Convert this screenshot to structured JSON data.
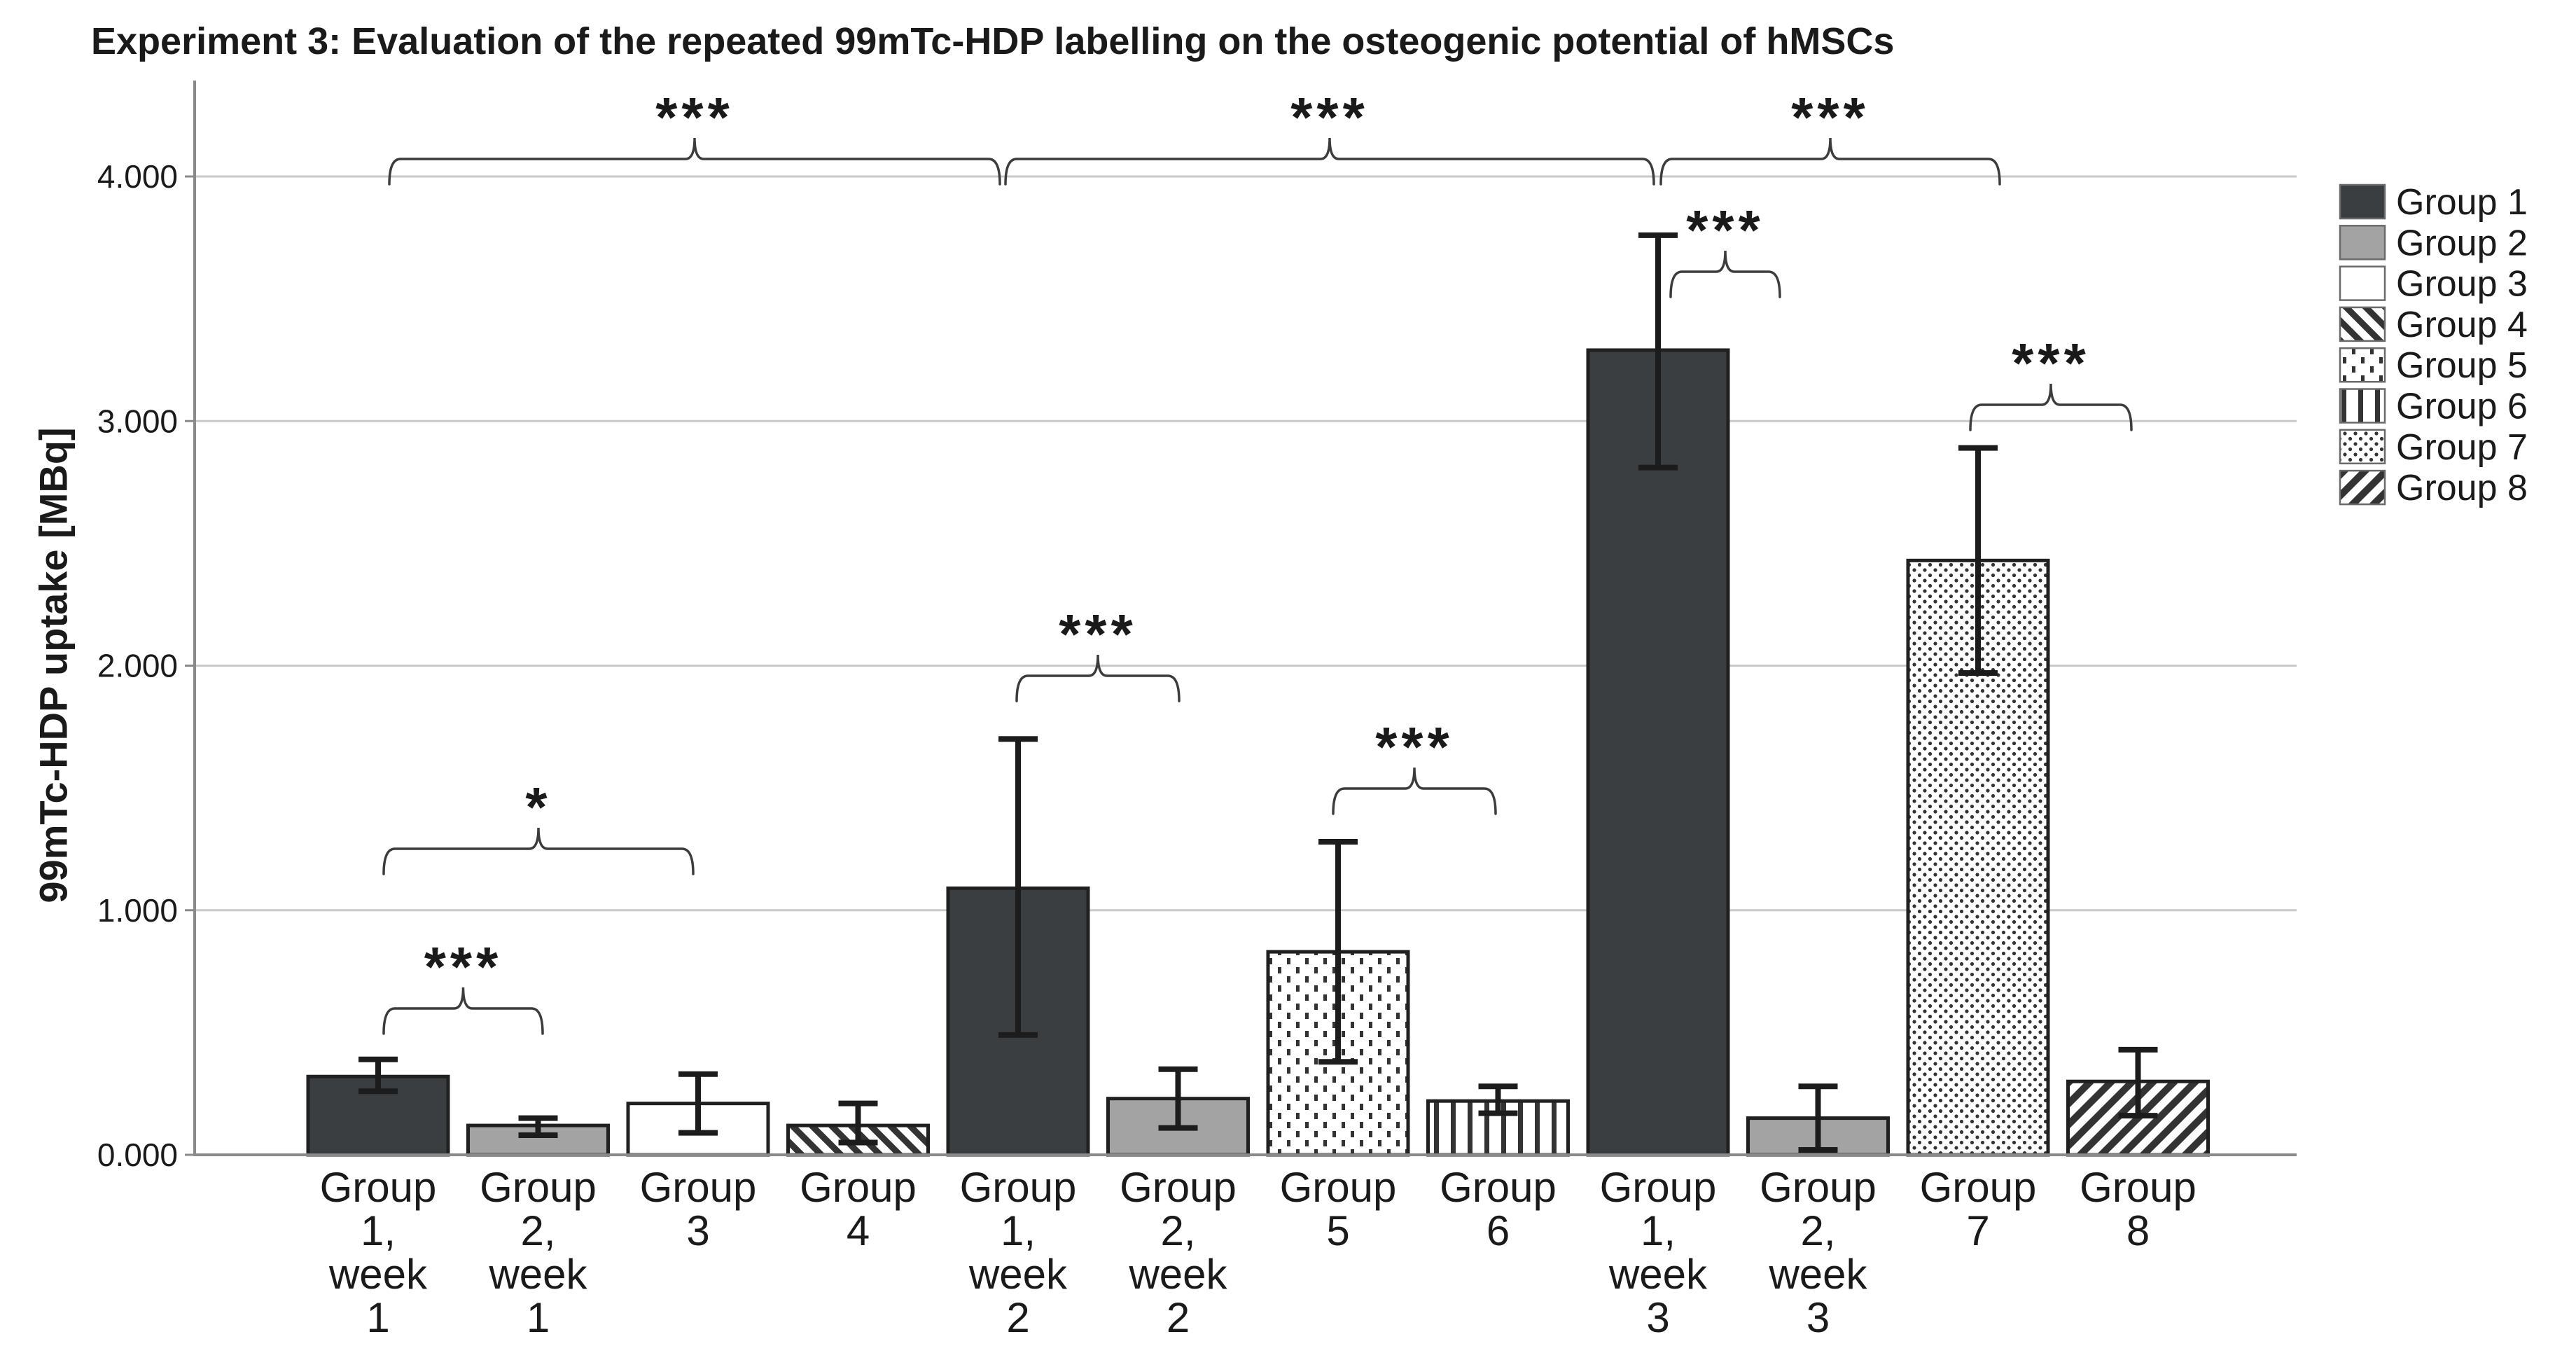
{
  "title": "Experiment 3: Evaluation of the repeated 99mTc-HDP labelling on the osteogenic potential of hMSCs",
  "chart_data": {
    "type": "bar",
    "title": "Experiment 3: Evaluation of the repeated 99mTc-HDP labelling on the osteogenic potential of hMSCs",
    "xlabel": "",
    "ylabel": "99mTc-HDP uptake [MBq]",
    "unit": "MBq",
    "ylim": [
      0,
      4.39
    ],
    "ytick_labels": [
      "0.000",
      "1.000",
      "2.000",
      "3.000",
      "4.000"
    ],
    "ytick_values": [
      0,
      1,
      2,
      3,
      4
    ],
    "grid": true,
    "legend_position": "right",
    "bars": [
      {
        "category": "Group 1, week 1",
        "label_lines": [
          "Group",
          "1,",
          "week",
          "1"
        ],
        "group": "Group 1",
        "pattern": "solid-dark",
        "value": 0.32,
        "err_low": 0.26,
        "err_high": 0.39
      },
      {
        "category": "Group 2, week 1",
        "label_lines": [
          "Group",
          "2,",
          "week",
          "1"
        ],
        "group": "Group 2",
        "pattern": "solid-gray",
        "value": 0.12,
        "err_low": 0.08,
        "err_high": 0.15
      },
      {
        "category": "Group 3",
        "label_lines": [
          "Group",
          "3"
        ],
        "group": "Group 3",
        "pattern": "solid-white",
        "value": 0.21,
        "err_low": 0.09,
        "err_high": 0.33
      },
      {
        "category": "Group 4",
        "label_lines": [
          "Group",
          "4"
        ],
        "group": "Group 4",
        "pattern": "diag-back",
        "value": 0.12,
        "err_low": 0.05,
        "err_high": 0.21
      },
      {
        "category": "Group 1, week 2",
        "label_lines": [
          "Group",
          "1,",
          "week",
          "2"
        ],
        "group": "Group 1",
        "pattern": "solid-dark",
        "value": 1.09,
        "err_low": 0.49,
        "err_high": 1.7
      },
      {
        "category": "Group 2, week 2",
        "label_lines": [
          "Group",
          "2,",
          "week",
          "2"
        ],
        "group": "Group 2",
        "pattern": "solid-gray",
        "value": 0.23,
        "err_low": 0.11,
        "err_high": 0.35
      },
      {
        "category": "Group 5",
        "label_lines": [
          "Group",
          "5"
        ],
        "group": "Group 5",
        "pattern": "dots-sparse",
        "value": 0.83,
        "err_low": 0.38,
        "err_high": 1.28
      },
      {
        "category": "Group 6",
        "label_lines": [
          "Group",
          "6"
        ],
        "group": "Group 6",
        "pattern": "vstripes",
        "value": 0.22,
        "err_low": 0.17,
        "err_high": 0.28
      },
      {
        "category": "Group 1, week 3",
        "label_lines": [
          "Group",
          "1,",
          "week",
          "3"
        ],
        "group": "Group 1",
        "pattern": "solid-dark",
        "value": 3.29,
        "err_low": 2.81,
        "err_high": 3.76
      },
      {
        "category": "Group 2, week 3",
        "label_lines": [
          "Group",
          "2,",
          "week",
          "3"
        ],
        "group": "Group 2",
        "pattern": "solid-gray",
        "value": 0.15,
        "err_low": 0.02,
        "err_high": 0.28
      },
      {
        "category": "Group 7",
        "label_lines": [
          "Group",
          "7"
        ],
        "group": "Group 7",
        "pattern": "dots-dense",
        "value": 2.43,
        "err_low": 1.97,
        "err_high": 2.89
      },
      {
        "category": "Group 8",
        "label_lines": [
          "Group",
          "8"
        ],
        "group": "Group 8",
        "pattern": "diag-fwd",
        "value": 0.3,
        "err_low": 0.16,
        "err_high": 0.43
      }
    ],
    "legend": [
      {
        "label": "Group 1",
        "pattern": "solid-dark"
      },
      {
        "label": "Group 2",
        "pattern": "solid-gray"
      },
      {
        "label": "Group 3",
        "pattern": "solid-white"
      },
      {
        "label": "Group 4",
        "pattern": "diag-back"
      },
      {
        "label": "Group 5",
        "pattern": "dots-sparse"
      },
      {
        "label": "Group 6",
        "pattern": "vstripes"
      },
      {
        "label": "Group 7",
        "pattern": "dots-dense"
      },
      {
        "label": "Group 8",
        "pattern": "diag-fwd"
      }
    ],
    "significance": [
      {
        "pair": [
          "Group 1, week 1",
          "Group 1, week 2"
        ],
        "label": "***",
        "x1": 556,
        "x2": 1428,
        "y": 227
      },
      {
        "pair": [
          "Group 1, week 2",
          "Group 1, week 3"
        ],
        "label": "***",
        "x1": 1436,
        "x2": 2362,
        "y": 227
      },
      {
        "pair": [
          "Group 1, week 3",
          "Group 7"
        ],
        "label": "***",
        "x1": 2372,
        "x2": 2856,
        "y": 227
      },
      {
        "pair": [
          "Group 1, week 1",
          "Group 3"
        ],
        "label": "*",
        "x1": 548,
        "x2": 990,
        "y": 1212
      },
      {
        "pair": [
          "Group 1, week 1",
          "Group 2, week 1"
        ],
        "label": "***",
        "x1": 548,
        "x2": 775,
        "y": 1440
      },
      {
        "pair": [
          "Group 1, week 2",
          "Group 2, week 2"
        ],
        "label": "***",
        "x1": 1452,
        "x2": 1684,
        "y": 965
      },
      {
        "pair": [
          "Group 5",
          "Group 6"
        ],
        "label": "***",
        "x1": 1904,
        "x2": 2136,
        "y": 1126
      },
      {
        "pair": [
          "Group 1, week 3",
          "Group 2, week 3"
        ],
        "label": "***",
        "x1": 2386,
        "x2": 2542,
        "y": 388
      },
      {
        "pair": [
          "Group 7",
          "Group 8"
        ],
        "label": "***",
        "x1": 2814,
        "x2": 3044,
        "y": 578
      }
    ]
  },
  "colors": {
    "bar_dark": "#3b3e41",
    "bar_gray": "#a3a3a3",
    "bar_white": "#ffffff",
    "pattern_ink": "#333333",
    "outline": "#202020",
    "error_bar": "#1c1c1c",
    "grid": "#c9c9c9",
    "axis": "#8a8a8a",
    "text": "#1a1a1a",
    "bracket": "#3c3c3c",
    "background": "#ffffff"
  }
}
